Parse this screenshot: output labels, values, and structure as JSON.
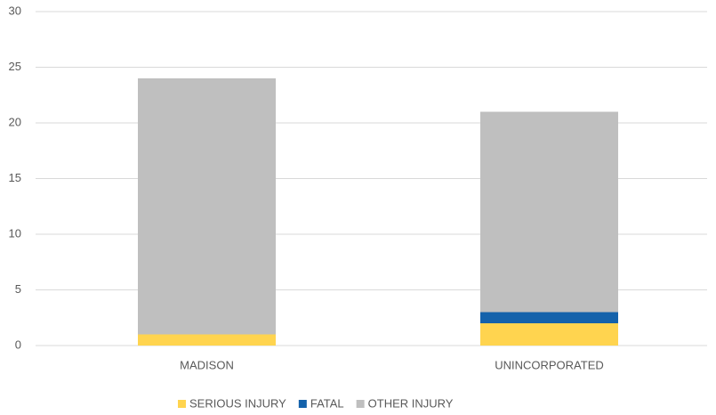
{
  "chart_data": {
    "type": "stacked_bar",
    "categories": [
      "MADISON",
      "UNINCORPORATED"
    ],
    "series": [
      {
        "name": "SERIOUS INJURY",
        "color": "#ffd44f",
        "values": [
          1,
          2
        ]
      },
      {
        "name": "FATAL",
        "color": "#1462ab",
        "values": [
          0,
          1
        ]
      },
      {
        "name": "OTHER INJURY",
        "color": "#bfbfbf",
        "values": [
          23,
          18
        ]
      }
    ],
    "ylim": [
      0,
      30
    ],
    "yticks": [
      0,
      5,
      10,
      15,
      20,
      25,
      30
    ],
    "grid": true,
    "legend": "bottom"
  }
}
